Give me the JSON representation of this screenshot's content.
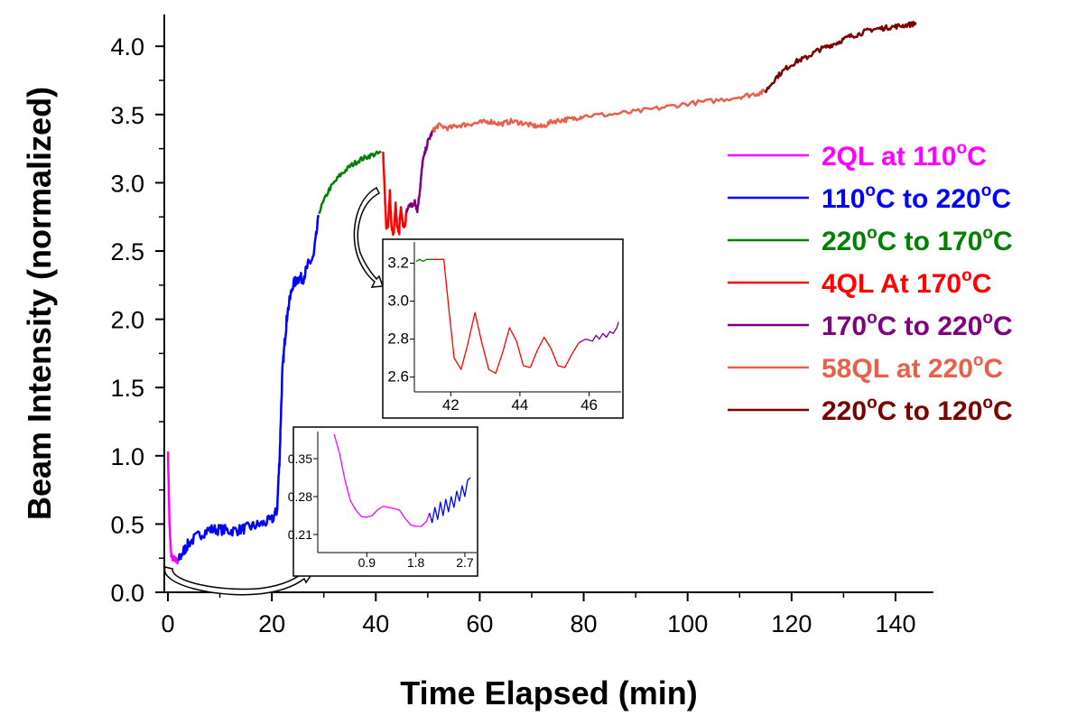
{
  "chart_data": [
    {
      "type": "line",
      "title": "",
      "xlabel": "Time Elapsed (min)",
      "ylabel": "Beam Intensity (normalized)",
      "xlim": [
        -2,
        150
      ],
      "ylim": [
        0.0,
        4.2
      ],
      "xticks": [
        0,
        20,
        40,
        60,
        80,
        100,
        120,
        140
      ],
      "xtick_labels": [
        "0",
        "20",
        "40",
        "60",
        "80",
        "100",
        "120",
        "140"
      ],
      "yticks": [
        0.0,
        0.5,
        1.0,
        1.5,
        2.0,
        2.5,
        3.0,
        3.5,
        4.0
      ],
      "ytick_labels": [
        "0.0",
        "0.5",
        "1.0",
        "1.5",
        "2.0",
        "2.5",
        "3.0",
        "3.5",
        "4.0"
      ],
      "legend_position": "right",
      "series": [
        {
          "name": "2QL at 110°C",
          "legend_main": "2QL at 110",
          "legend_tail": "C",
          "color": "#ff00ff",
          "x": [
            0,
            0.3,
            0.6,
            0.9,
            1.2,
            1.5,
            1.8,
            2.0
          ],
          "y": [
            1.05,
            0.5,
            0.28,
            0.24,
            0.25,
            0.24,
            0.22,
            0.23
          ]
        },
        {
          "name": "110°C to 220°C",
          "legend_main": "110",
          "legend_mid": "C to 220",
          "legend_tail": "C",
          "color": "#0000ff",
          "x": [
            2,
            3,
            4,
            6,
            8,
            10,
            12,
            14,
            16,
            18,
            20,
            21,
            21.5,
            22,
            22.5,
            23,
            24,
            25,
            26,
            27,
            28,
            29
          ],
          "y": [
            0.23,
            0.3,
            0.36,
            0.42,
            0.46,
            0.46,
            0.45,
            0.46,
            0.48,
            0.5,
            0.53,
            0.6,
            1.0,
            1.6,
            1.85,
            2.05,
            2.25,
            2.3,
            2.3,
            2.4,
            2.45,
            2.75
          ]
        },
        {
          "name": "220°C to 170°C",
          "legend_main": "220",
          "legend_mid": "C to 170",
          "legend_tail": "C",
          "color": "#008000",
          "x": [
            29,
            31,
            33,
            35,
            37,
            39,
            41
          ],
          "y": [
            2.78,
            2.95,
            3.05,
            3.12,
            3.17,
            3.2,
            3.22
          ]
        },
        {
          "name": "4QL At 170°C",
          "legend_main": "4QL At 170",
          "legend_tail": "C",
          "color": "#ff0000",
          "x": [
            41.4,
            41.6,
            42.0,
            42.3,
            42.7,
            43.0,
            43.3,
            43.5,
            43.8,
            44.1,
            44.5,
            44.8,
            45.2,
            45.6,
            45.9
          ],
          "y": [
            3.22,
            3.05,
            2.68,
            2.66,
            2.93,
            2.7,
            2.62,
            2.65,
            2.86,
            2.68,
            2.64,
            2.82,
            2.69,
            2.68,
            2.79
          ]
        },
        {
          "name": "170°C to 220°C",
          "legend_main": "170",
          "legend_mid": "C to 220",
          "legend_tail": "C",
          "color": "#7f007f",
          "x": [
            45.9,
            46.5,
            47,
            47.5,
            48,
            48.5,
            49,
            50,
            51
          ],
          "y": [
            2.79,
            2.84,
            2.83,
            2.86,
            2.8,
            2.95,
            3.15,
            3.3,
            3.38
          ]
        },
        {
          "name": "58QL at 220°C",
          "legend_main": "58QL at 220",
          "legend_tail": "C",
          "color": "#e8604a",
          "x": [
            51,
            52,
            54,
            56,
            58,
            60,
            62,
            64,
            66,
            68,
            70,
            72,
            74,
            76,
            78,
            80,
            85,
            90,
            95,
            100,
            105,
            110,
            113,
            115
          ],
          "y": [
            3.38,
            3.42,
            3.4,
            3.42,
            3.43,
            3.44,
            3.45,
            3.43,
            3.45,
            3.44,
            3.42,
            3.41,
            3.45,
            3.46,
            3.47,
            3.49,
            3.5,
            3.52,
            3.55,
            3.58,
            3.6,
            3.63,
            3.65,
            3.67
          ]
        },
        {
          "name": "220°C to 120°C",
          "legend_main": "220",
          "legend_mid": "C to 120",
          "legend_tail": "C",
          "color": "#7b0000",
          "x": [
            115,
            117,
            119,
            121,
            123,
            125,
            127,
            129,
            131,
            133,
            135,
            137,
            139,
            141,
            143,
            144
          ],
          "y": [
            3.67,
            3.77,
            3.84,
            3.89,
            3.92,
            3.97,
            4.0,
            4.03,
            4.07,
            4.09,
            4.12,
            4.13,
            4.14,
            4.15,
            4.16,
            4.17
          ]
        }
      ]
    },
    {
      "type": "line",
      "title": "",
      "xlim": [
        41,
        46.9
      ],
      "ylim": [
        2.56,
        3.25
      ],
      "xticks": [
        42,
        44,
        46
      ],
      "xtick_labels": [
        "42",
        "44",
        "46"
      ],
      "yticks": [
        2.6,
        2.8,
        3.0,
        3.2
      ],
      "ytick_labels": [
        "2.6",
        "2.8",
        "3.0",
        "3.2"
      ],
      "series": [
        {
          "color": "#008000",
          "x": [
            41.0,
            41.1,
            41.2,
            41.3,
            41.4,
            41.5
          ],
          "y": [
            3.21,
            3.22,
            3.21,
            3.22,
            3.22,
            3.22
          ]
        },
        {
          "color": "#ff0000",
          "x": [
            41.5,
            41.8,
            41.95,
            42.1,
            42.3,
            42.5,
            42.7,
            42.9,
            43.1,
            43.3,
            43.5,
            43.7,
            43.9,
            44.1,
            44.3,
            44.5,
            44.7,
            44.9,
            45.1,
            45.3,
            45.5,
            45.7
          ],
          "y": [
            3.22,
            3.22,
            2.95,
            2.7,
            2.64,
            2.78,
            2.94,
            2.78,
            2.64,
            2.62,
            2.73,
            2.86,
            2.79,
            2.66,
            2.65,
            2.74,
            2.81,
            2.75,
            2.66,
            2.65,
            2.72,
            2.78
          ]
        },
        {
          "color": "#7f007f",
          "x": [
            45.7,
            45.9,
            46.1,
            46.2,
            46.3,
            46.4,
            46.5,
            46.6,
            46.7,
            46.8,
            46.85
          ],
          "y": [
            2.78,
            2.8,
            2.79,
            2.82,
            2.8,
            2.83,
            2.81,
            2.84,
            2.83,
            2.86,
            2.89
          ]
        }
      ]
    },
    {
      "type": "line",
      "title": "",
      "xlim": [
        0.0,
        2.9
      ],
      "ylim": [
        0.2,
        0.4
      ],
      "xticks": [
        0.9,
        1.8,
        2.7
      ],
      "xtick_labels": [
        "0.9",
        "1.8",
        "2.7"
      ],
      "yticks": [
        0.21,
        0.28,
        0.35
      ],
      "ytick_labels": [
        "0.21",
        "0.28",
        "0.35"
      ],
      "series": [
        {
          "color": "#ff00ff",
          "x": [
            0.3,
            0.4,
            0.5,
            0.6,
            0.7,
            0.8,
            0.9,
            1.0,
            1.1,
            1.2,
            1.3,
            1.4,
            1.5,
            1.6,
            1.7,
            1.8,
            1.9,
            2.0,
            2.05
          ],
          "y": [
            0.395,
            0.36,
            0.31,
            0.272,
            0.255,
            0.243,
            0.242,
            0.245,
            0.256,
            0.262,
            0.26,
            0.258,
            0.255,
            0.24,
            0.228,
            0.225,
            0.225,
            0.235,
            0.25
          ]
        },
        {
          "color": "#0000ff",
          "x": [
            2.05,
            2.1,
            2.15,
            2.2,
            2.25,
            2.3,
            2.35,
            2.4,
            2.45,
            2.5,
            2.55,
            2.6,
            2.65,
            2.7,
            2.75,
            2.8
          ],
          "y": [
            0.25,
            0.232,
            0.26,
            0.238,
            0.27,
            0.245,
            0.275,
            0.252,
            0.28,
            0.26,
            0.29,
            0.272,
            0.3,
            0.28,
            0.31,
            0.315
          ]
        }
      ]
    }
  ]
}
